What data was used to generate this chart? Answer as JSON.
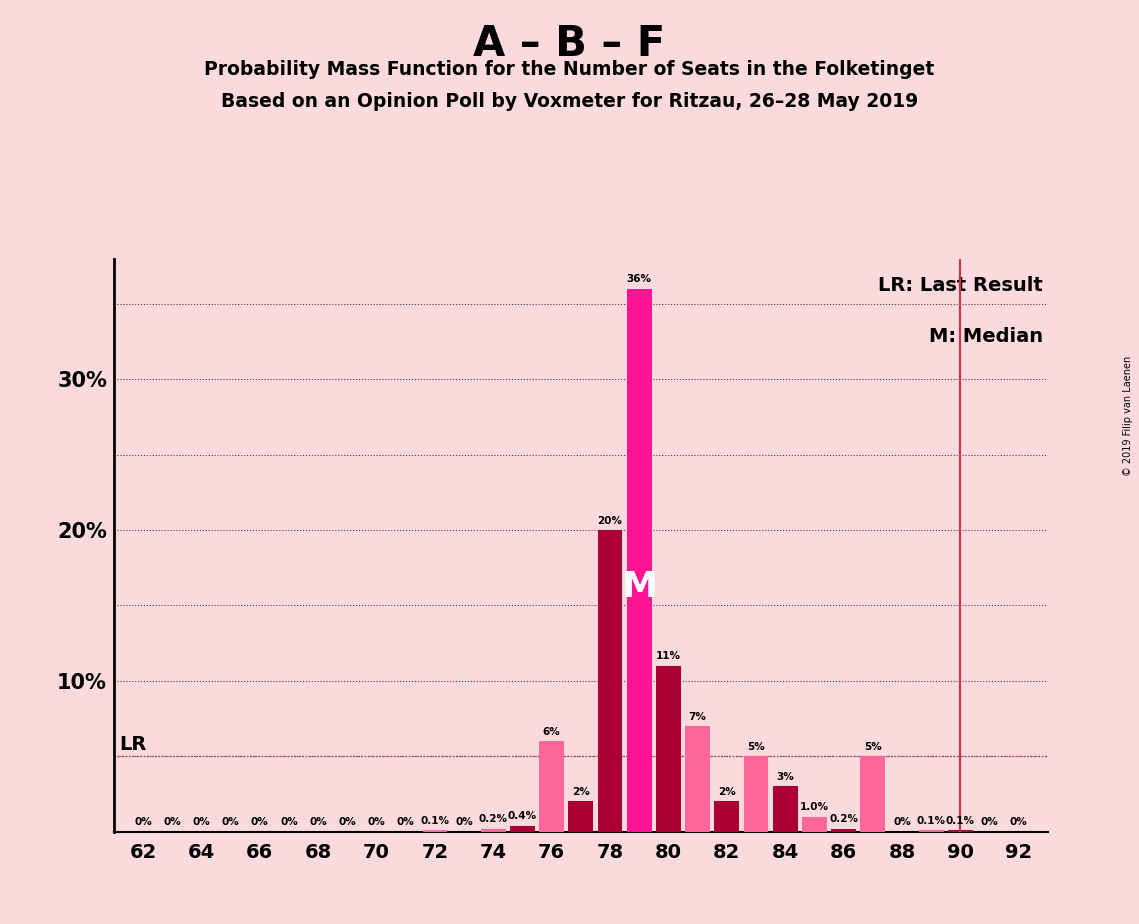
{
  "title": "A – B – F",
  "subtitle1": "Probability Mass Function for the Number of Seats in the Folketinget",
  "subtitle2": "Based on an Opinion Poll by Voxmeter for Ritzau, 26–28 May 2019",
  "background_color": "#FADADD",
  "seats": [
    62,
    63,
    64,
    65,
    66,
    67,
    68,
    69,
    70,
    71,
    72,
    73,
    74,
    75,
    76,
    77,
    78,
    79,
    80,
    81,
    82,
    83,
    84,
    85,
    86,
    87,
    88,
    89,
    90,
    91,
    92
  ],
  "probs": [
    0.0,
    0.0,
    0.0,
    0.0,
    0.0,
    0.0,
    0.0,
    0.0,
    0.0,
    0.0,
    0.1,
    0.0,
    0.2,
    0.4,
    6.0,
    2.0,
    20.0,
    36.0,
    11.0,
    7.0,
    2.0,
    5.0,
    3.0,
    1.0,
    0.2,
    5.0,
    0.0,
    0.1,
    0.1,
    0.0,
    0.0
  ],
  "labels": [
    "0%",
    "0%",
    "0%",
    "0%",
    "0%",
    "0%",
    "0%",
    "0%",
    "0%",
    "0%",
    "0.1%",
    "0%",
    "0.2%",
    "0.4%",
    "6%",
    "2%",
    "20%",
    "36%",
    "11%",
    "7%",
    "2%",
    "5%",
    "3%",
    "1.0%",
    "0.2%",
    "5%",
    "0%",
    "0.1%",
    "0.1%",
    "0%",
    "0%"
  ],
  "bar_colors": [
    "#cc0044",
    "#ff4488",
    "#cc0044",
    "#ff4488",
    "#cc0044",
    "#ff4488",
    "#cc0044",
    "#ff4488",
    "#cc0044",
    "#ff4488",
    "#cc0044",
    "#ff4488",
    "#cc0044",
    "#ff4488",
    "#ff4499",
    "#cc0044",
    "#cc0044",
    "#ff1493",
    "#cc0044",
    "#ff4488",
    "#cc0044",
    "#ff4488",
    "#cc0044",
    "#ff4488",
    "#cc0044",
    "#ff4488",
    "#cc0044",
    "#ff4488",
    "#cc0044",
    "#ff4488",
    "#cc0044"
  ],
  "median_seat": 79,
  "last_result_seat": 90,
  "lr_y": 5.0,
  "ylim": [
    0,
    38
  ],
  "xlim": [
    61,
    93
  ],
  "ytick_positions": [
    10,
    20,
    30
  ],
  "ytick_labels": [
    "10%",
    "20%",
    "30%"
  ],
  "dotted_lines": [
    5,
    10,
    15,
    20,
    25,
    30,
    35
  ],
  "copyright": "© 2019 Filip van Laenen"
}
